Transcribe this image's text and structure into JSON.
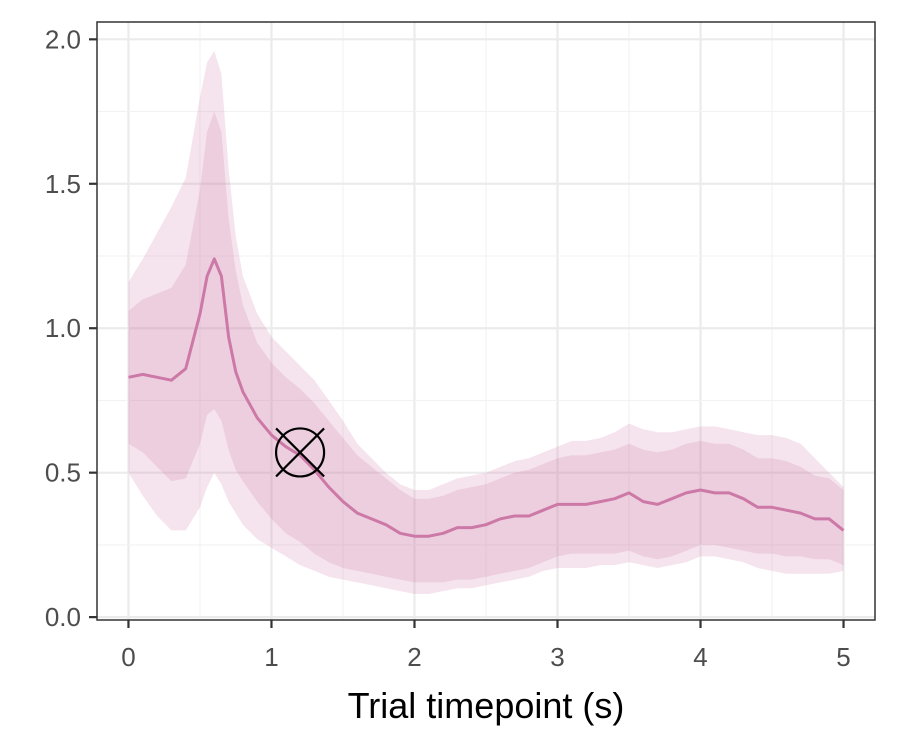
{
  "chart_data": {
    "type": "line",
    "title": "",
    "xlabel": "Trial timepoint (s)",
    "ylabel": "",
    "xlim": [
      -0.22,
      5.22
    ],
    "ylim": [
      -0.01,
      2.06
    ],
    "x_ticks": [
      0,
      1,
      2,
      3,
      4,
      5
    ],
    "x_tick_labels": [
      "0",
      "1",
      "2",
      "3",
      "4",
      "5"
    ],
    "y_ticks": [
      0.0,
      0.5,
      1.0,
      1.5,
      2.0
    ],
    "y_tick_labels": [
      "0.0",
      "0.5",
      "1.0",
      "1.5",
      "2.0"
    ],
    "grid": true,
    "colors": {
      "line": "#cc79a7",
      "band_outer": "#cc79a7",
      "band_inner": "#cc79a7",
      "marker": "#000000"
    },
    "series": [
      {
        "x": [
          0,
          0.1,
          0.2,
          0.3,
          0.4,
          0.5,
          0.55,
          0.6,
          0.65,
          0.7,
          0.75,
          0.8,
          0.9,
          1.0,
          1.1,
          1.2,
          1.3,
          1.4,
          1.5,
          1.6,
          1.7,
          1.8,
          1.9,
          2.0,
          2.1,
          2.2,
          2.3,
          2.4,
          2.5,
          2.6,
          2.7,
          2.8,
          2.9,
          3.0,
          3.1,
          3.2,
          3.3,
          3.4,
          3.5,
          3.6,
          3.7,
          3.8,
          3.9,
          4.0,
          4.1,
          4.2,
          4.3,
          4.4,
          4.5,
          4.6,
          4.7,
          4.8,
          4.9,
          5.0
        ],
        "y": [
          0.83,
          0.84,
          0.83,
          0.82,
          0.86,
          1.05,
          1.18,
          1.24,
          1.18,
          0.97,
          0.85,
          0.78,
          0.69,
          0.63,
          0.59,
          0.56,
          0.51,
          0.45,
          0.4,
          0.36,
          0.34,
          0.32,
          0.29,
          0.28,
          0.28,
          0.29,
          0.31,
          0.31,
          0.32,
          0.34,
          0.35,
          0.35,
          0.37,
          0.39,
          0.39,
          0.39,
          0.4,
          0.41,
          0.43,
          0.4,
          0.39,
          0.41,
          0.43,
          0.44,
          0.43,
          0.43,
          0.41,
          0.38,
          0.38,
          0.37,
          0.36,
          0.34,
          0.34,
          0.3
        ],
        "inner_lower": [
          0.6,
          0.57,
          0.52,
          0.47,
          0.48,
          0.6,
          0.7,
          0.72,
          0.68,
          0.58,
          0.51,
          0.47,
          0.4,
          0.34,
          0.29,
          0.26,
          0.22,
          0.19,
          0.17,
          0.16,
          0.15,
          0.14,
          0.13,
          0.12,
          0.12,
          0.12,
          0.13,
          0.13,
          0.14,
          0.15,
          0.16,
          0.17,
          0.19,
          0.21,
          0.22,
          0.22,
          0.22,
          0.22,
          0.23,
          0.21,
          0.2,
          0.21,
          0.23,
          0.25,
          0.25,
          0.24,
          0.23,
          0.22,
          0.22,
          0.21,
          0.21,
          0.2,
          0.2,
          0.18
        ],
        "inner_upper": [
          1.06,
          1.1,
          1.12,
          1.14,
          1.22,
          1.48,
          1.68,
          1.75,
          1.68,
          1.38,
          1.2,
          1.08,
          0.95,
          0.88,
          0.83,
          0.79,
          0.74,
          0.68,
          0.62,
          0.56,
          0.52,
          0.48,
          0.44,
          0.41,
          0.41,
          0.42,
          0.44,
          0.45,
          0.46,
          0.48,
          0.5,
          0.51,
          0.53,
          0.55,
          0.56,
          0.56,
          0.57,
          0.58,
          0.6,
          0.58,
          0.57,
          0.58,
          0.6,
          0.61,
          0.6,
          0.6,
          0.58,
          0.55,
          0.55,
          0.54,
          0.52,
          0.49,
          0.48,
          0.44
        ],
        "outer_lower": [
          0.5,
          0.42,
          0.35,
          0.3,
          0.3,
          0.38,
          0.45,
          0.5,
          0.46,
          0.4,
          0.36,
          0.32,
          0.27,
          0.24,
          0.21,
          0.18,
          0.16,
          0.14,
          0.13,
          0.12,
          0.11,
          0.1,
          0.09,
          0.08,
          0.08,
          0.09,
          0.1,
          0.1,
          0.11,
          0.12,
          0.13,
          0.14,
          0.16,
          0.17,
          0.17,
          0.17,
          0.18,
          0.18,
          0.19,
          0.18,
          0.17,
          0.18,
          0.19,
          0.21,
          0.21,
          0.2,
          0.19,
          0.17,
          0.16,
          0.15,
          0.15,
          0.15,
          0.15,
          0.16
        ],
        "outer_upper": [
          1.16,
          1.24,
          1.33,
          1.42,
          1.52,
          1.8,
          1.92,
          1.96,
          1.88,
          1.55,
          1.32,
          1.18,
          1.05,
          0.97,
          0.92,
          0.87,
          0.82,
          0.75,
          0.68,
          0.6,
          0.55,
          0.5,
          0.46,
          0.44,
          0.44,
          0.46,
          0.48,
          0.49,
          0.5,
          0.52,
          0.54,
          0.55,
          0.57,
          0.59,
          0.61,
          0.61,
          0.62,
          0.64,
          0.67,
          0.65,
          0.64,
          0.64,
          0.65,
          0.66,
          0.66,
          0.65,
          0.64,
          0.63,
          0.63,
          0.62,
          0.6,
          0.55,
          0.5,
          0.45
        ]
      }
    ],
    "annotation": {
      "symbol": "circled-x-marker",
      "x": 1.2,
      "y": 0.57
    }
  }
}
